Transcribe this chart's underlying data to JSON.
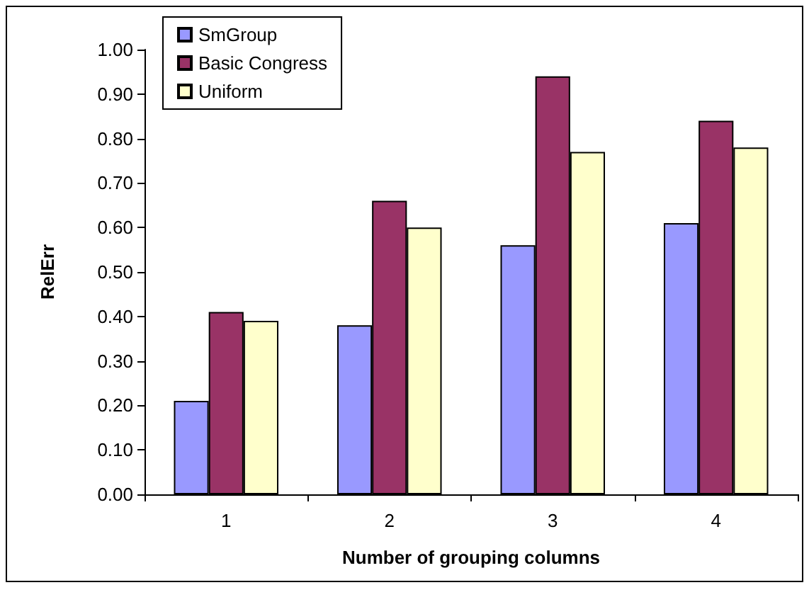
{
  "chart_data": {
    "type": "bar",
    "xlabel": "Number of grouping columns",
    "ylabel": "RelErr",
    "categories": [
      "1",
      "2",
      "3",
      "4"
    ],
    "series": [
      {
        "name": "SmGroup",
        "color": "#9999ff",
        "values": [
          0.21,
          0.38,
          0.56,
          0.61
        ]
      },
      {
        "name": "Basic Congress",
        "color": "#993366",
        "values": [
          0.41,
          0.66,
          0.94,
          0.84
        ]
      },
      {
        "name": "Uniform",
        "color": "#ffffcc",
        "values": [
          0.39,
          0.6,
          0.77,
          0.78
        ]
      }
    ],
    "ylim": [
      0,
      1
    ],
    "yticks": [
      {
        "value": 0,
        "label": "0.00"
      },
      {
        "value": 0.1,
        "label": "0.10"
      },
      {
        "value": 0.2,
        "label": "0.20"
      },
      {
        "value": 0.3,
        "label": "0.30"
      },
      {
        "value": 0.4,
        "label": "0.40"
      },
      {
        "value": 0.5,
        "label": "0.50"
      },
      {
        "value": 0.6,
        "label": "0.60"
      },
      {
        "value": 0.7,
        "label": "0.70"
      },
      {
        "value": 0.8,
        "label": "0.80"
      },
      {
        "value": 0.9,
        "label": "0.90"
      },
      {
        "value": 1,
        "label": "1.00"
      }
    ],
    "grid": false,
    "legend": "top left"
  }
}
